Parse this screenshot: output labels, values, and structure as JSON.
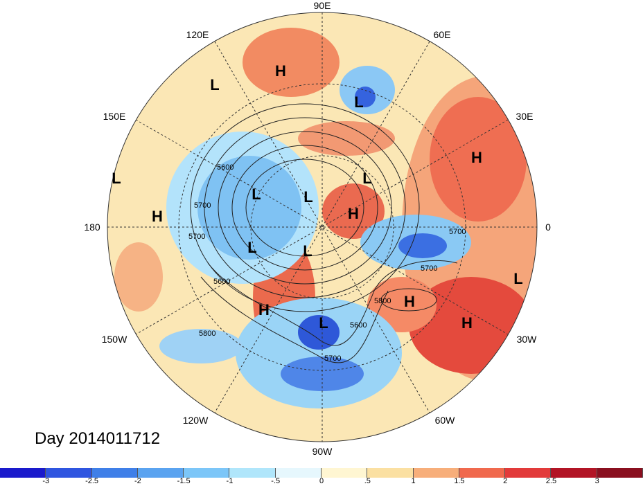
{
  "title": "Day 2014011712",
  "longitude_labels": {
    "top": "90E",
    "ne1": "60E",
    "ne2": "30E",
    "right": "0",
    "se1": "30W",
    "se2": "60W",
    "bottom": "90W",
    "sw1": "120W",
    "sw2": "150W",
    "left": "180",
    "nw1": "150E",
    "nw2": "120E"
  },
  "pressure_centers": [
    {
      "id": "h1",
      "text": "H"
    },
    {
      "id": "l1",
      "text": "L"
    },
    {
      "id": "l2",
      "text": "L"
    },
    {
      "id": "h2",
      "text": "H"
    },
    {
      "id": "l3",
      "text": "L"
    },
    {
      "id": "l4",
      "text": "L"
    },
    {
      "id": "l5",
      "text": "L"
    },
    {
      "id": "h3",
      "text": "H"
    },
    {
      "id": "l6",
      "text": "L"
    },
    {
      "id": "h4",
      "text": "H"
    },
    {
      "id": "l7",
      "text": "L"
    },
    {
      "id": "l8",
      "text": "L"
    },
    {
      "id": "l9",
      "text": "L"
    },
    {
      "id": "h5",
      "text": "H"
    },
    {
      "id": "l10",
      "text": "L"
    },
    {
      "id": "h6",
      "text": "H"
    },
    {
      "id": "h7",
      "text": "H"
    },
    {
      "id": "l11",
      "text": "L"
    }
  ],
  "contour_labels": [
    "5600",
    "5700",
    "5700",
    "5600",
    "5700",
    "5700",
    "5800",
    "5600",
    "5700",
    "5800"
  ],
  "colorbar": {
    "ticks": [
      "-3",
      "-2.5",
      "-2",
      "-1.5",
      "-1",
      "-.5",
      "0",
      ".5",
      "1",
      "1.5",
      "2",
      "2.5",
      "3"
    ],
    "colors": [
      "#1a1acc",
      "#2f55e0",
      "#3f7fe8",
      "#5aa3f0",
      "#7cc6f8",
      "#b0e6fb",
      "#e6f7fd",
      "#fff6d2",
      "#fbe0a2",
      "#f7ae7a",
      "#f0694d",
      "#e23a3a",
      "#b21425",
      "#8a0f1f"
    ]
  }
}
